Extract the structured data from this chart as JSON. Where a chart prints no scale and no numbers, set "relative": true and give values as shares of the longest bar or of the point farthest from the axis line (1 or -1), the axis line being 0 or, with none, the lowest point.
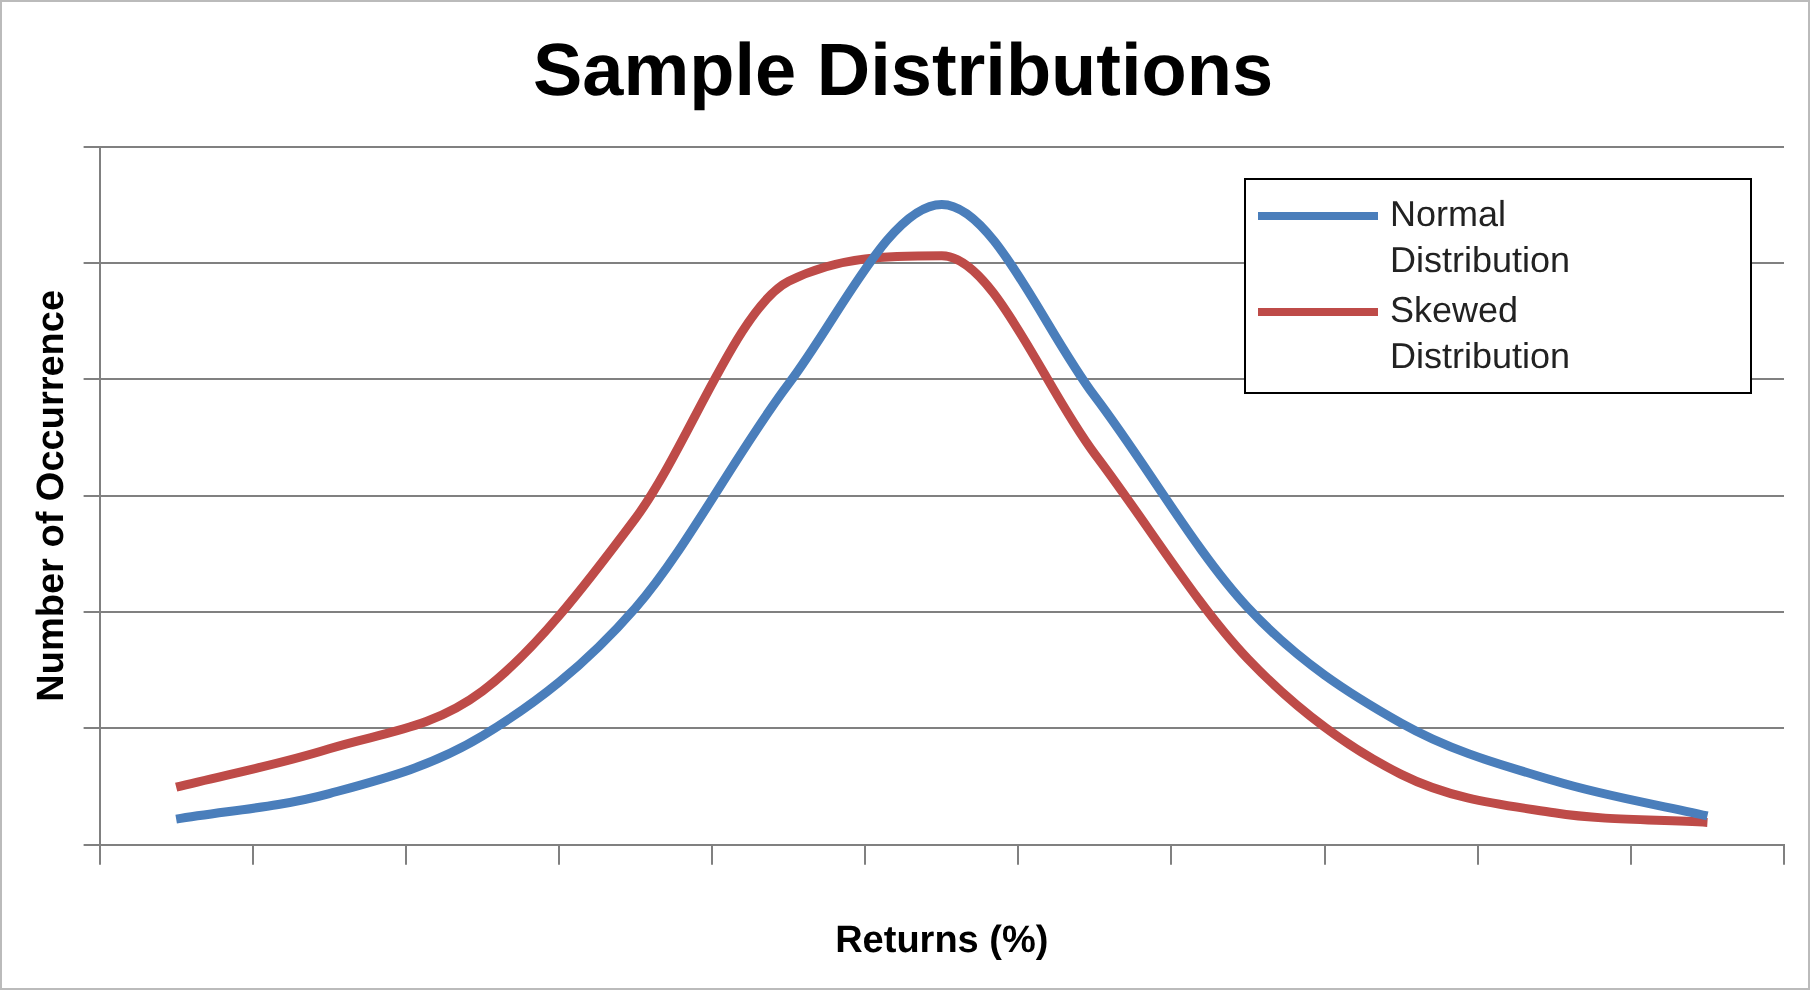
{
  "chart_data": {
    "type": "line",
    "title": "Sample Distributions",
    "xlabel": "Returns (%)",
    "ylabel": "Number of Occurrence",
    "relative": true,
    "grid": "y",
    "legend": "top right",
    "marker": "none",
    "line_style": "solid",
    "categories": [
      null,
      null,
      null,
      null,
      null,
      null,
      null,
      null,
      null,
      null,
      null
    ],
    "series": [
      {
        "name": "Normal Distribution",
        "color": "#4a7ebb",
        "values": [
          0.04,
          0.08,
          0.17,
          0.37,
          0.72,
          1,
          0.7,
          0.37,
          0.19,
          0.1,
          0.045
        ]
      },
      {
        "name": "Skewed Distribution",
        "color": "#be4b48",
        "values": [
          0.09,
          0.15,
          0.24,
          0.51,
          0.88,
          0.92,
          0.61,
          0.29,
          0.11,
          0.05,
          0.035
        ]
      }
    ]
  }
}
